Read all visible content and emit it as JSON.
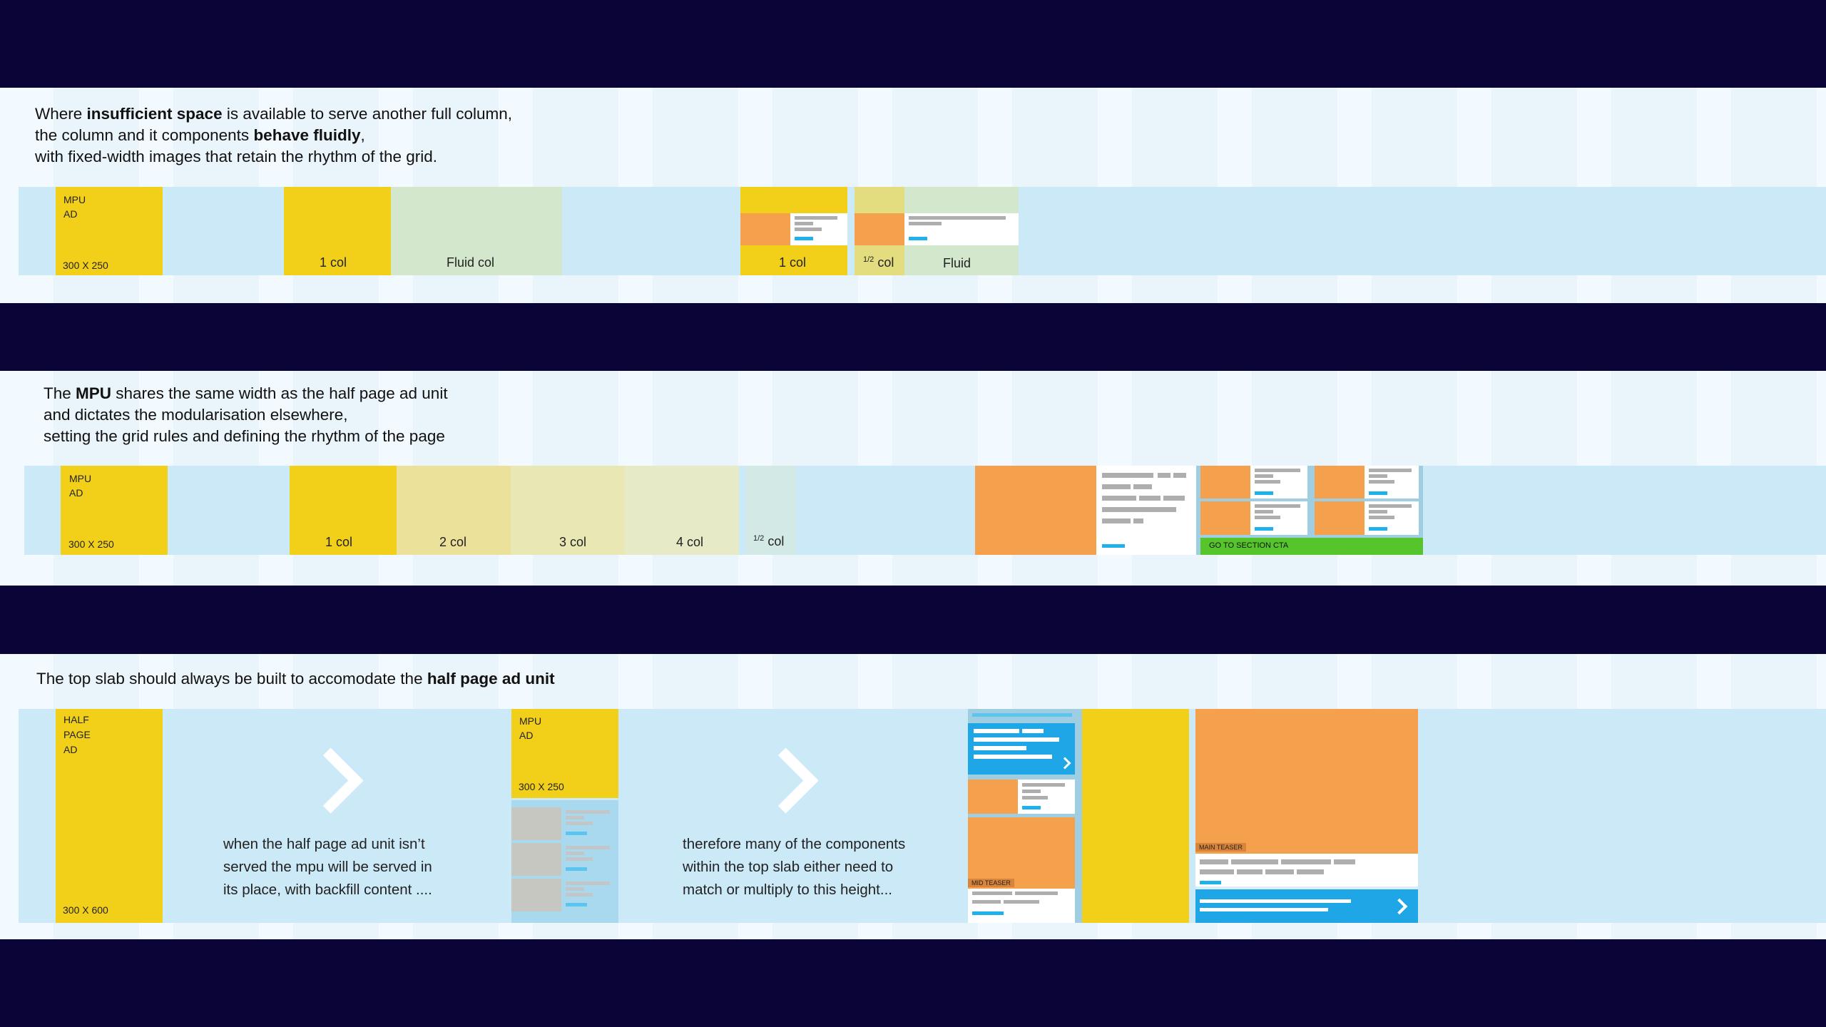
{
  "section1": {
    "intro_line1_pre": "Where ",
    "intro_line1_bold": "insufficient space",
    "intro_line1_post": " is available to serve another full column,",
    "intro_line2_pre": "the column and it components ",
    "intro_line2_bold": "behave fluidly",
    "intro_line2_post": ",",
    "intro_line3": "with fixed-width images that retain the rhythm of the grid.",
    "mpu_label": "MPU\nAD",
    "mpu_size": "300 X 250",
    "one_col": "1 col",
    "fluid_col": "Fluid col",
    "one_col_2": "1 col",
    "half_sup": "1/2",
    "half_col": "col",
    "fluid": "Fluid"
  },
  "section2": {
    "intro_line1_pre": "The ",
    "intro_line1_bold": "MPU",
    "intro_line1_post": " shares the same width as the half page ad unit",
    "intro_line2": "and dictates the modularisation elsewhere,",
    "intro_line3": "setting the grid rules and defining the rhythm of the page",
    "mpu_label": "MPU\nAD",
    "mpu_size": "300 X 250",
    "col1": "1 col",
    "col2": "2 col",
    "col3": "3 col",
    "col4": "4 col",
    "half_sup": "1/2",
    "half_col": "col",
    "cta": "GO TO SECTION CTA"
  },
  "section3": {
    "intro_pre": "The top slab should always be built to accomodate the ",
    "intro_bold": "half page ad unit",
    "half_page_label": "HALF\nPAGE\nAD",
    "half_page_size": "300 X 600",
    "caption1": "when the half page ad unit isn’t\nserved the mpu will be served in\nits place, with backfill content ....",
    "mpu_label": "MPU\nAD",
    "mpu_size": "300 X 250",
    "caption2": "therefore many of the components\nwithin the top slab either need to\nmatch or multiply to this height...",
    "mid_teaser": "MID TEASER",
    "main_teaser": "MAIN TEASER"
  },
  "colors": {
    "background": "#0a0536",
    "panel": "#f3faff",
    "strip": "#cce9f8",
    "mpu_yellow": "#f2d01a",
    "orange": "#f5a04d",
    "fluid_green": "#d3e7cc",
    "link_blue": "#1fb2ea",
    "cta_green": "#56c52b"
  }
}
